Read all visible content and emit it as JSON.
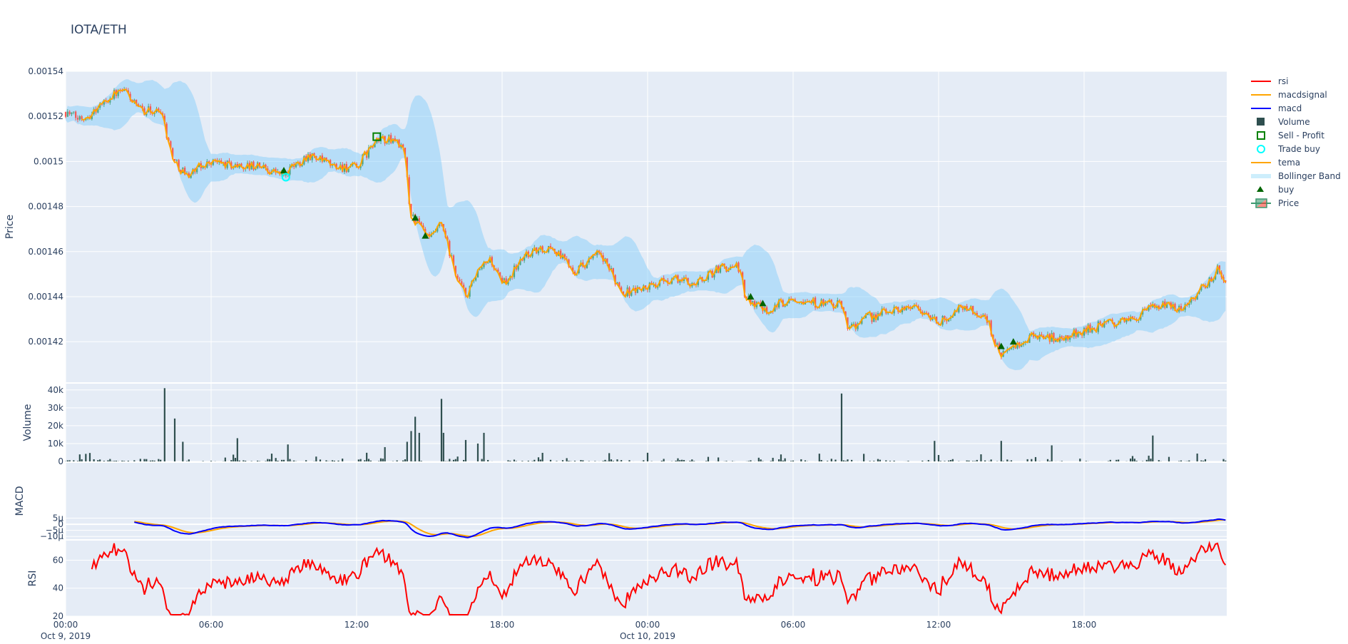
{
  "title": "IOTA/ETH",
  "colors": {
    "background": "#E5ECF6",
    "increasing": "#3D9970",
    "decreasing": "#FF4136",
    "bollinger": "#87CEFA",
    "tema": "#FFA500",
    "macd": "#0000FF",
    "macdsignal": "#FFA500",
    "rsi": "#FF0000",
    "volume": "#2F4F4F",
    "buy": "#006400",
    "trade_buy": "#00FFFF",
    "sell_profit": "#008000"
  },
  "legend": [
    {
      "label": "rsi",
      "icon": "line"
    },
    {
      "label": "macdsignal",
      "icon": "line"
    },
    {
      "label": "macd",
      "icon": "line"
    },
    {
      "label": "Volume",
      "icon": "square-filled"
    },
    {
      "label": "Sell - Profit",
      "icon": "square-open"
    },
    {
      "label": "Trade buy",
      "icon": "circle-open"
    },
    {
      "label": "tema",
      "icon": "line"
    },
    {
      "label": "Bollinger Band",
      "icon": "band"
    },
    {
      "label": "buy",
      "icon": "triangle-up"
    },
    {
      "label": "Price",
      "icon": "candlestick"
    }
  ],
  "chart_data": {
    "type": "candlestick",
    "candle_interval": "5m",
    "x_range": [
      "2019-10-09 00:00",
      "2019-10-10 23:53"
    ],
    "x_ticks": [
      {
        "t": "2019-10-09 00:00",
        "label": "00:00",
        "sub": "Oct 9, 2019"
      },
      {
        "t": "2019-10-09 06:00",
        "label": "06:00",
        "sub": ""
      },
      {
        "t": "2019-10-09 12:00",
        "label": "12:00",
        "sub": ""
      },
      {
        "t": "2019-10-09 18:00",
        "label": "18:00",
        "sub": ""
      },
      {
        "t": "2019-10-10 00:00",
        "label": "00:00",
        "sub": "Oct 10, 2019"
      },
      {
        "t": "2019-10-10 06:00",
        "label": "06:00",
        "sub": ""
      },
      {
        "t": "2019-10-10 12:00",
        "label": "12:00",
        "sub": ""
      },
      {
        "t": "2019-10-10 18:00",
        "label": "18:00",
        "sub": ""
      }
    ],
    "panels": {
      "price": {
        "ylabel": "Price",
        "ylim": [
          0.001402,
          0.00154
        ],
        "ticks": [
          {
            "v": 0.00154,
            "label": "0.00154"
          },
          {
            "v": 0.00152,
            "label": "0.00152"
          },
          {
            "v": 0.0015,
            "label": "0.0015"
          },
          {
            "v": 0.00148,
            "label": "0.00148"
          },
          {
            "v": 0.00146,
            "label": "0.00146"
          },
          {
            "v": 0.00144,
            "label": "0.00144"
          },
          {
            "v": 0.00142,
            "label": "0.00142"
          }
        ]
      },
      "volume": {
        "ylabel": "Volume",
        "ylim": [
          0,
          43500
        ],
        "ticks": [
          {
            "v": 0,
            "label": "0"
          },
          {
            "v": 10000,
            "label": "10k"
          },
          {
            "v": 20000,
            "label": "20k"
          },
          {
            "v": 30000,
            "label": "30k"
          },
          {
            "v": 40000,
            "label": "40k"
          }
        ]
      },
      "macd": {
        "ylabel": "MACD",
        "ylim": [
          -1.22e-05,
          5.02e-05
        ],
        "ticks": [
          {
            "v": 5e-06,
            "label": "5µ"
          },
          {
            "v": 0,
            "label": "0"
          },
          {
            "v": -5e-06,
            "label": "−5µ"
          },
          {
            "v": -1e-05,
            "label": "−10µ"
          }
        ]
      },
      "rsi": {
        "ylabel": "RSI",
        "ylim": [
          20,
          74
        ],
        "ticks": [
          {
            "v": 20,
            "label": "20"
          },
          {
            "v": 40,
            "label": "40"
          },
          {
            "v": 60,
            "label": "60"
          }
        ]
      }
    },
    "price_path": [
      [
        "2019-10-09 00:00",
        0.001522
      ],
      [
        "2019-10-09 00:30",
        0.001519
      ],
      [
        "2019-10-09 01:00",
        0.001521
      ],
      [
        "2019-10-09 02:00",
        0.00153
      ],
      [
        "2019-10-09 02:30",
        0.001531
      ],
      [
        "2019-10-09 03:00",
        0.001523
      ],
      [
        "2019-10-09 04:00",
        0.001522
      ],
      [
        "2019-10-09 04:12",
        0.00151
      ],
      [
        "2019-10-09 04:30",
        0.0015
      ],
      [
        "2019-10-09 05:00",
        0.001494
      ],
      [
        "2019-10-09 06:00",
        0.0015
      ],
      [
        "2019-10-09 07:00",
        0.001498
      ],
      [
        "2019-10-09 08:00",
        0.001498
      ],
      [
        "2019-10-09 09:00",
        0.001494
      ],
      [
        "2019-10-09 10:00",
        0.001503
      ],
      [
        "2019-10-09 11:00",
        0.001498
      ],
      [
        "2019-10-09 12:00",
        0.001497
      ],
      [
        "2019-10-09 12:30",
        0.001505
      ],
      [
        "2019-10-09 13:00",
        0.00151
      ],
      [
        "2019-10-09 13:42",
        0.001509
      ],
      [
        "2019-10-09 14:00",
        0.001502
      ],
      [
        "2019-10-09 14:12",
        0.001478
      ],
      [
        "2019-10-09 15:00",
        0.001465
      ],
      [
        "2019-10-09 15:30",
        0.001472
      ],
      [
        "2019-10-09 16:00",
        0.001453
      ],
      [
        "2019-10-09 16:30",
        0.00144
      ],
      [
        "2019-10-09 17:00",
        0.00145
      ],
      [
        "2019-10-09 17:30",
        0.001457
      ],
      [
        "2019-10-09 18:00",
        0.001445
      ],
      [
        "2019-10-09 19:00",
        0.001459
      ],
      [
        "2019-10-09 20:00",
        0.001462
      ],
      [
        "2019-10-09 21:00",
        0.001452
      ],
      [
        "2019-10-09 22:00",
        0.001459
      ],
      [
        "2019-10-09 23:00",
        0.001442
      ],
      [
        "2019-10-10 00:00",
        0.001444
      ],
      [
        "2019-10-10 01:00",
        0.001448
      ],
      [
        "2019-10-10 02:00",
        0.001446
      ],
      [
        "2019-10-10 03:00",
        0.001453
      ],
      [
        "2019-10-10 03:48",
        0.001453
      ],
      [
        "2019-10-10 04:00",
        0.00144
      ],
      [
        "2019-10-10 05:00",
        0.001434
      ],
      [
        "2019-10-10 06:00",
        0.00144
      ],
      [
        "2019-10-10 07:00",
        0.001437
      ],
      [
        "2019-10-10 08:00",
        0.001436
      ],
      [
        "2019-10-10 08:18",
        0.001426
      ],
      [
        "2019-10-10 09:00",
        0.00143
      ],
      [
        "2019-10-10 10:00",
        0.001434
      ],
      [
        "2019-10-10 11:00",
        0.001436
      ],
      [
        "2019-10-10 12:00",
        0.001428
      ],
      [
        "2019-10-10 13:00",
        0.001436
      ],
      [
        "2019-10-10 14:00",
        0.00143
      ],
      [
        "2019-10-10 14:30",
        0.001415
      ],
      [
        "2019-10-10 15:00",
        0.001416
      ],
      [
        "2019-10-10 16:00",
        0.001423
      ],
      [
        "2019-10-10 17:00",
        0.001421
      ],
      [
        "2019-10-10 18:00",
        0.001425
      ],
      [
        "2019-10-10 19:00",
        0.001428
      ],
      [
        "2019-10-10 20:00",
        0.00143
      ],
      [
        "2019-10-10 21:00",
        0.001436
      ],
      [
        "2019-10-10 22:00",
        0.001435
      ],
      [
        "2019-10-10 23:00",
        0.001445
      ],
      [
        "2019-10-10 23:30",
        0.001452
      ],
      [
        "2019-10-10 23:51",
        0.001448
      ]
    ],
    "volume_spikes": [
      [
        "2019-10-09 04:05",
        41000
      ],
      [
        "2019-10-09 04:30",
        24000
      ],
      [
        "2019-10-09 04:50",
        11000
      ],
      [
        "2019-10-09 07:05",
        13000
      ],
      [
        "2019-10-09 09:10",
        9500
      ],
      [
        "2019-10-09 13:10",
        8000
      ],
      [
        "2019-10-09 14:05",
        11000
      ],
      [
        "2019-10-09 14:15",
        17000
      ],
      [
        "2019-10-09 14:25",
        25000
      ],
      [
        "2019-10-09 14:35",
        16000
      ],
      [
        "2019-10-09 15:30",
        35000
      ],
      [
        "2019-10-09 15:35",
        16000
      ],
      [
        "2019-10-09 16:30",
        12000
      ],
      [
        "2019-10-09 17:00",
        10000
      ],
      [
        "2019-10-09 17:15",
        16000
      ],
      [
        "2019-10-10 08:00",
        38000
      ],
      [
        "2019-10-10 11:50",
        11500
      ],
      [
        "2019-10-10 14:35",
        11500
      ],
      [
        "2019-10-10 16:40",
        9000
      ],
      [
        "2019-10-10 20:50",
        14500
      ]
    ],
    "buy": [
      [
        "2019-10-09 09:00",
        0.001496
      ],
      [
        "2019-10-09 14:25",
        0.001475
      ],
      [
        "2019-10-09 14:50",
        0.001467
      ],
      [
        "2019-10-10 04:15",
        0.00144
      ],
      [
        "2019-10-10 04:45",
        0.001437
      ],
      [
        "2019-10-10 14:35",
        0.001418
      ],
      [
        "2019-10-10 15:05",
        0.00142
      ]
    ],
    "trade_buy": [
      [
        "2019-10-09 09:05",
        0.001493
      ]
    ],
    "sell_profit": [
      [
        "2019-10-09 12:50",
        0.001511
      ]
    ],
    "macd_start": "2019-10-09 02:50",
    "rsi_start": "2019-10-09 01:05"
  }
}
